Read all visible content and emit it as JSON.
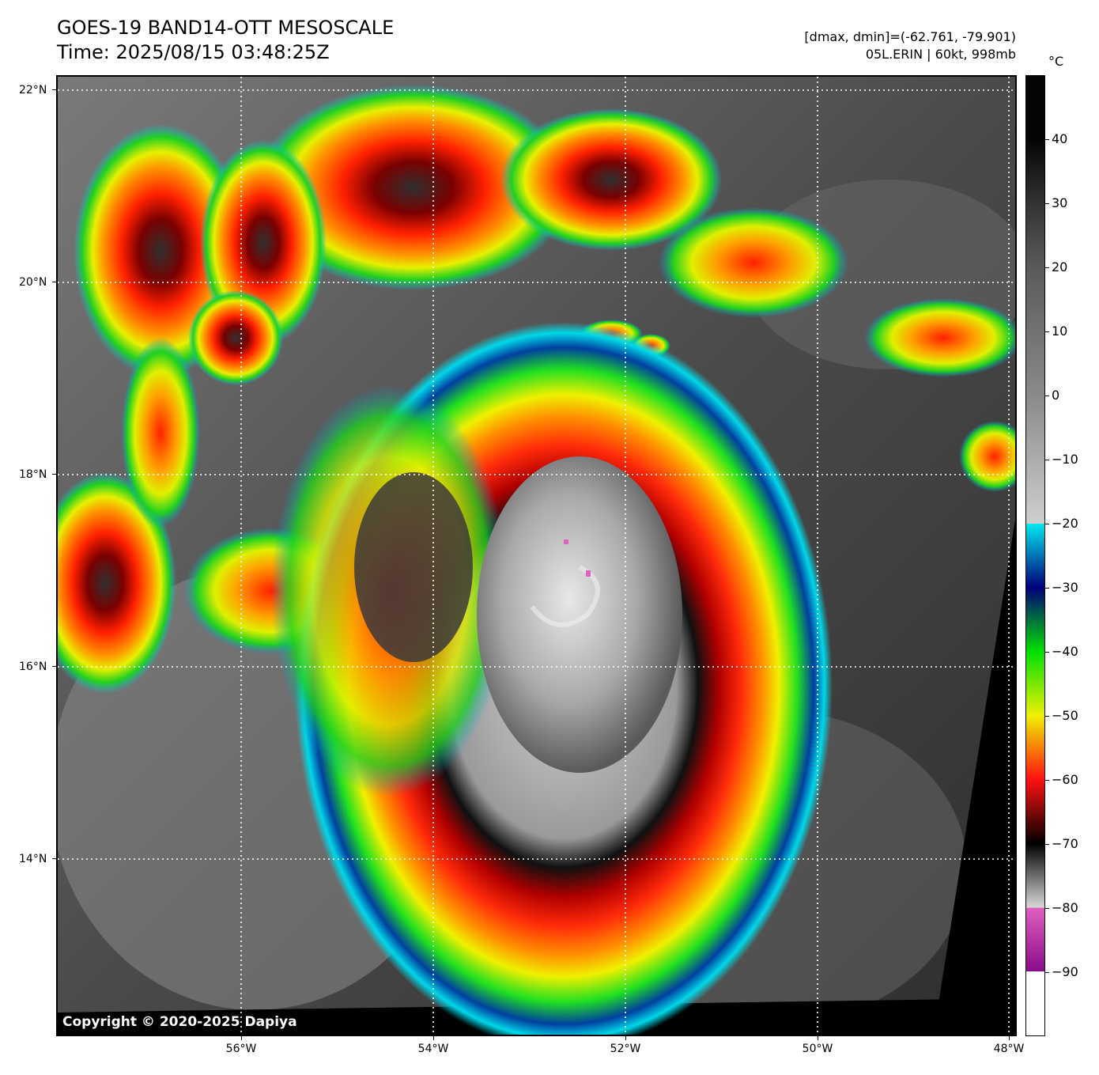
{
  "header": {
    "title_line1": "GOES-19 BAND14-OTT MESOSCALE",
    "title_line2": "Time: 2025/08/15 03:48:25Z",
    "info_line1": "[dmax, dmin]=(-62.761, -79.901)",
    "info_line2": "05L.ERIN | 60kt, 998mb"
  },
  "map": {
    "copyright": "Copyright © 2020-2025 Dapiya",
    "lat_labels": [
      "22°N",
      "20°N",
      "18°N",
      "16°N",
      "14°N"
    ],
    "lon_labels": [
      "56°W",
      "54°W",
      "52°W",
      "50°W",
      "48°W"
    ],
    "storm_name": "05L.ERIN",
    "gridlines": "dotted white"
  },
  "colorbar": {
    "unit": "°C",
    "labels": [
      "40",
      "30",
      "20",
      "10",
      "0",
      "−10",
      "−20",
      "−30",
      "−40",
      "−50",
      "−60",
      "−70",
      "−80",
      "−90"
    ],
    "stops": [
      {
        "t": 40,
        "color": "#050505"
      },
      {
        "t": 30,
        "color": "#333333"
      },
      {
        "t": 20,
        "color": "#5a5a5a"
      },
      {
        "t": 0,
        "color": "#8a8a8a"
      },
      {
        "t": -20,
        "color": "#cfcfcf"
      },
      {
        "t": -20,
        "color": "#00e8f0"
      },
      {
        "t": -30,
        "color": "#00007a"
      },
      {
        "t": -40,
        "color": "#00e000"
      },
      {
        "t": -50,
        "color": "#f0f000"
      },
      {
        "t": -60,
        "color": "#ff1010"
      },
      {
        "t": -70,
        "color": "#000000"
      },
      {
        "t": -80,
        "color": "#d8d8d8"
      },
      {
        "t": -80,
        "color": "#e060c0"
      },
      {
        "t": -90,
        "color": "#8a0a8a"
      },
      {
        "t": -90,
        "color": "#ffffff"
      }
    ]
  }
}
